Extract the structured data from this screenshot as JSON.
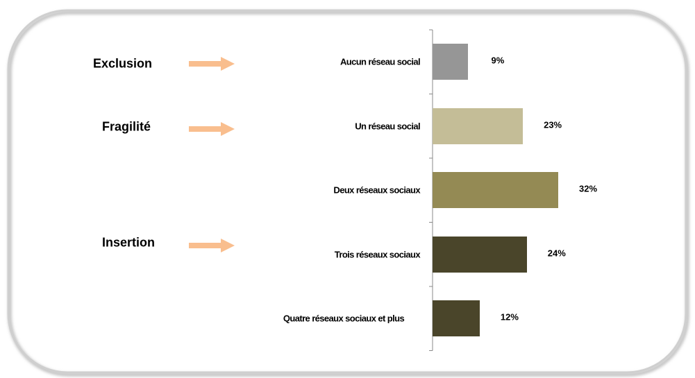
{
  "chart_data": {
    "type": "hbar",
    "categories": [
      "Aucun réseau social",
      "Un réseau social",
      "Deux réseaux sociaux",
      "Trois réseaux sociaux",
      "Quatre réseaux sociaux et plus"
    ],
    "values": [
      9,
      23,
      32,
      24,
      12
    ],
    "value_labels": [
      "9%",
      "23%",
      "32%",
      "24%",
      "12%"
    ],
    "colors": [
      "#969696",
      "#c4bd97",
      "#948a54",
      "#4a452a",
      "#4a452a"
    ],
    "xlim": [
      0,
      35
    ],
    "annotations": [
      "Exclusion",
      "Fragilité",
      "Insertion"
    ],
    "arrow_color": "#f9be8e"
  }
}
